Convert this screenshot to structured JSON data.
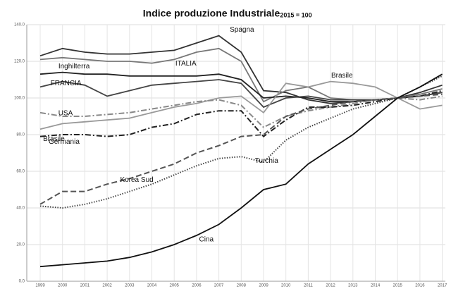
{
  "chart_data": {
    "type": "line",
    "title": "Indice produzione Industriale",
    "subtitle": "2015 = 100",
    "categories": [
      "1999",
      "2000",
      "2001",
      "2002",
      "2003",
      "2004",
      "2005",
      "2006",
      "2007",
      "2008",
      "2009",
      "2010",
      "2011",
      "2012",
      "2013",
      "2014",
      "2015",
      "2016",
      "2017"
    ],
    "ylim": [
      0,
      140
    ],
    "yticks": [
      {
        "value": 0,
        "label": "0.0"
      },
      {
        "value": 20,
        "label": "20.0"
      },
      {
        "value": 40,
        "label": "40.0"
      },
      {
        "value": 60,
        "label": "60.0"
      },
      {
        "value": 80,
        "label": "80.0"
      },
      {
        "value": 100,
        "label": "100.0"
      },
      {
        "value": 120,
        "label": "120.0"
      },
      {
        "value": 140,
        "label": "140.0"
      }
    ],
    "grid": true,
    "series": [
      {
        "name": "Spagna",
        "color": "#333333",
        "dash": "solid",
        "values": [
          123,
          127,
          125,
          124,
          124,
          125,
          126,
          130,
          134,
          125,
          104,
          103,
          99,
          97,
          98,
          99,
          100,
          103,
          107
        ]
      },
      {
        "name": "ITALIA",
        "color": "#777777",
        "dash": "solid",
        "values": [
          121,
          122,
          121,
          120,
          120,
          119,
          121,
          125,
          127,
          120,
          98,
          104,
          106,
          100,
          99,
          99,
          100,
          102,
          105
        ]
      },
      {
        "name": "Inghilterra",
        "color": "#222222",
        "dash": "solid",
        "values": [
          113,
          114,
          113,
          113,
          112,
          112,
          112,
          112,
          113,
          110,
          100,
          101,
          100,
          98,
          98,
          99,
          100,
          101,
          103
        ]
      },
      {
        "name": "FRANCIA",
        "color": "#444444",
        "dash": "solid",
        "values": [
          106,
          109,
          107,
          101,
          104,
          107,
          108,
          109,
          110,
          108,
          95,
          100,
          101,
          99,
          99,
          99,
          100,
          101,
          103
        ]
      },
      {
        "name": "Brasile",
        "color": "#999999",
        "dash": "solid",
        "values": [
          83,
          86,
          87,
          88,
          89,
          92,
          95,
          97,
          100,
          101,
          92,
          108,
          106,
          109,
          108,
          106,
          100,
          94,
          96
        ]
      },
      {
        "name": "USA",
        "color": "#888888",
        "dash": "dashdot",
        "values": [
          92,
          90,
          90,
          91,
          92,
          94,
          96,
          98,
          99,
          96,
          84,
          90,
          93,
          95,
          97,
          99,
          100,
          99,
          101
        ]
      },
      {
        "name": "Germania",
        "color": "#222222",
        "dash": "dashdot",
        "values": [
          79,
          80,
          80,
          79,
          80,
          84,
          86,
          91,
          93,
          93,
          79,
          88,
          95,
          95,
          96,
          98,
          100,
          101,
          104
        ]
      },
      {
        "name": "Korea Sud",
        "color": "#555555",
        "dash": "dash",
        "values": [
          42,
          49,
          49,
          53,
          56,
          60,
          64,
          70,
          74,
          79,
          80,
          90,
          94,
          96,
          98,
          99,
          100,
          101,
          102
        ]
      },
      {
        "name": "Turchia",
        "color": "#444444",
        "dash": "dot",
        "values": [
          41,
          40,
          42,
          45,
          49,
          53,
          58,
          63,
          67,
          68,
          65,
          77,
          84,
          89,
          94,
          97,
          100,
          106,
          112
        ]
      },
      {
        "name": "Cina",
        "color": "#111111",
        "dash": "solid",
        "values": [
          8,
          9,
          10,
          11,
          13,
          16,
          20,
          25,
          31,
          40,
          50,
          53,
          64,
          72,
          80,
          90,
          100,
          106,
          113
        ]
      }
    ]
  }
}
